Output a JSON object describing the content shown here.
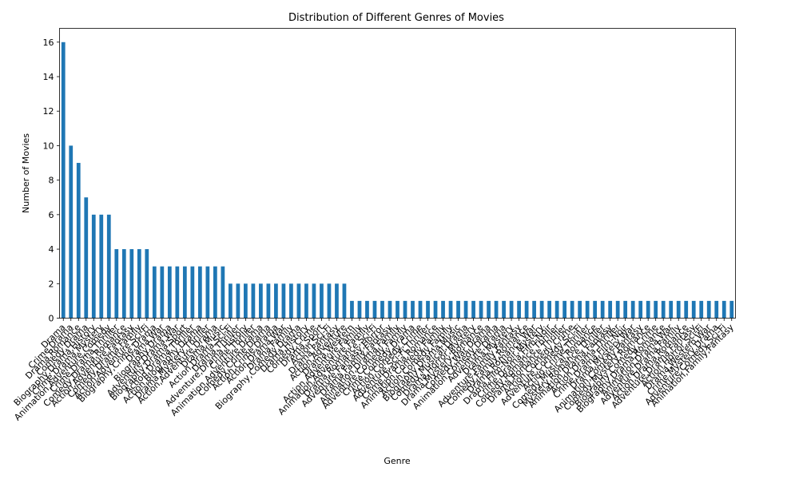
{
  "chart_data": {
    "type": "bar",
    "title": "Distribution of Different Genres of Movies",
    "xlabel": "Genre",
    "ylabel": "Number of Movies",
    "ylim": [
      0,
      16.8
    ],
    "yticks": [
      0,
      2,
      4,
      6,
      8,
      10,
      12,
      14,
      16
    ],
    "grid": false,
    "legend": "none",
    "bar_color": "#1f77b4",
    "categories": [
      "Drama",
      "Crime,Drama",
      "Drama,Romance",
      "Comedy,Drama",
      "Biography,Drama,History",
      "Crime,Drama,Mystery",
      "Animation,Adventure,Comedy",
      "Crime,Drama,Thriller",
      "Comedy,Drama,Romance",
      "Action,Adventure,Fantasy",
      "Comedy,Drama,Family",
      "Action,Adventure,Sci-Fi",
      "Biography,Crime,Drama",
      "Drama,War",
      "Biography,Drama",
      "Adventure,Drama,War",
      "Biography,Drama,Sport",
      "Action,Drama,Thriller",
      "Action,Biography,Drama",
      "Drama,Mystery,Thriller",
      "Action,Adventure,Drama",
      "Drama,Music",
      "Action,Drama,Sci-Fi",
      "Drama,Thriller",
      "Adventure,Drama,History",
      "Crime,Thriller",
      "Animation,Adventure,Drama",
      "Comedy,Crime,Drama",
      "Action,Crime,Drama",
      "Action,Drama,War",
      "Drama,Family",
      "Biography,Comedy,Drama",
      "Drama,History",
      "Comedy,Crime",
      "Drama,Sport",
      "Action,Sci-Fi",
      "Drama,Fantasy",
      "Action,Adventure",
      "Drama,Western",
      "Action,Adventure,Family",
      "Animation,Adventure,Family",
      "Drama,Romance,Sci-Fi",
      "Adventure,Fantasy,Horror",
      "Drama,Family,Fantasy",
      "Animation,Drama,Family",
      "Adventure,Comedy,Family",
      "Crime,Comedy,Drama",
      "Action,Comedy,Crime",
      "Adventure,Sci-Fi,Thriller",
      "Crime,Drama,Romance",
      "Animation,Comedy,Family",
      "Action,Comedy,Family",
      "Biography,Drama,Music",
      "Comedy,Musical,Drama",
      "Drama,Horror,Mystery",
      "Drama,Mystery,Romance",
      "Comedy,War,Drama",
      "Animation,Comedy,Drama",
      "Adventure,Drama",
      "Drama,Mystery",
      "Adventure,Family,Fantasy",
      "Comedy,Family,Romance",
      "Drama,Romance,War",
      "Drama,Film-Noir,Mystery",
      "Crime,Drama,Film-Noir",
      "Comedy,Romance,Thriller",
      "Drama,Romance,Thriller",
      "Action,Comedy,Crime",
      "Adventure,Comedy,Sci-Fi",
      "Action,Crime,Thriller",
      "Comedy,Musical,Romance",
      "Mystery,Romance,Thriller",
      "Animation,Drama,Fantasy",
      "Action,Drama,Thriller",
      "Crime,Drama,Film-Noir",
      "Drama,Mystery,War",
      "Animation,Comedy,Fantasy",
      "Comedy,Mystery,Romance",
      "Biography,Comedy,Crime",
      "Biography,Drama,Romance",
      "Animation,Drama,War",
      "Adventure,Drama,Family",
      "Action,Drama,Romance",
      "Adventure,Drama,Fantasy",
      "Action,Horror,Sci-Fi",
      "Drama,Western,War",
      "Crime,Mystery,Drama",
      "Adventure,Comedy,Sci-Fi",
      "Animation,Family,Fantasy"
    ],
    "values": [
      16,
      10,
      9,
      7,
      6,
      6,
      6,
      4,
      4,
      4,
      4,
      4,
      3,
      3,
      3,
      3,
      3,
      3,
      3,
      3,
      3,
      3,
      2,
      2,
      2,
      2,
      2,
      2,
      2,
      2,
      2,
      2,
      2,
      2,
      2,
      2,
      2,
      2,
      1,
      1,
      1,
      1,
      1,
      1,
      1,
      1,
      1,
      1,
      1,
      1,
      1,
      1,
      1,
      1,
      1,
      1,
      1,
      1,
      1,
      1,
      1,
      1,
      1,
      1,
      1,
      1,
      1,
      1,
      1,
      1,
      1,
      1,
      1,
      1,
      1,
      1,
      1,
      1,
      1,
      1,
      1,
      1,
      1,
      1,
      1,
      1,
      1,
      1,
      1
    ]
  }
}
